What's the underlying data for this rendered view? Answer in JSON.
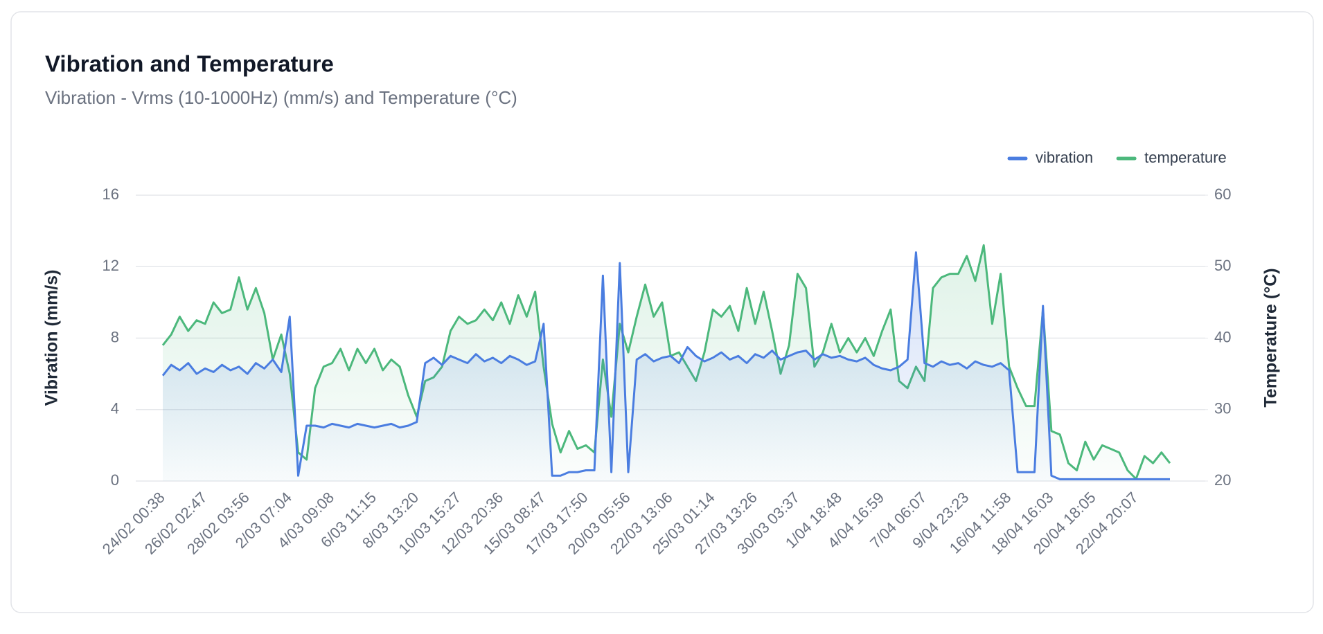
{
  "chart_data": {
    "type": "line",
    "title": "Vibration and Temperature",
    "subtitle": "Vibration - Vrms (10-1000Hz) (mm/s) and Temperature (°C)",
    "y_label": "Vibration (mm/s)",
    "y2_label": "Temperature (°C)",
    "categories": [
      "24/02 00:38",
      null,
      null,
      null,
      null,
      "26/02 02:47",
      null,
      null,
      null,
      null,
      "28/02 03:56",
      null,
      null,
      null,
      null,
      "2/03 07:04",
      null,
      null,
      null,
      null,
      "4/03 09:08",
      null,
      null,
      null,
      null,
      "6/03 11:15",
      null,
      null,
      null,
      null,
      "8/03 13:20",
      null,
      null,
      null,
      null,
      "10/03 15:27",
      null,
      null,
      null,
      null,
      "12/03 20:36",
      null,
      null,
      null,
      null,
      "15/03 08:47",
      null,
      null,
      null,
      null,
      "17/03 17:50",
      null,
      null,
      null,
      null,
      "20/03 05:56",
      null,
      null,
      null,
      null,
      "22/03 13:06",
      null,
      null,
      null,
      null,
      "25/03 01:14",
      null,
      null,
      null,
      null,
      "27/03 13:26",
      null,
      null,
      null,
      null,
      "30/03 03:37",
      null,
      null,
      null,
      null,
      "1/04 18:48",
      null,
      null,
      null,
      null,
      "4/04 16:59",
      null,
      null,
      null,
      null,
      "7/04 06:07",
      null,
      null,
      null,
      null,
      "9/04 23:23",
      null,
      null,
      null,
      null,
      "16/04 11:58",
      null,
      null,
      null,
      null,
      "18/04 16:03",
      null,
      null,
      null,
      null,
      "20/04 18:05",
      null,
      null,
      null,
      null,
      "22/04 20:07",
      null,
      null,
      null,
      null
    ],
    "series": [
      {
        "name": "vibration",
        "color": "#4a7de0",
        "values": [
          5.9,
          6.5,
          6.2,
          6.6,
          6.0,
          6.3,
          6.1,
          6.5,
          6.2,
          6.4,
          6.0,
          6.6,
          6.3,
          6.8,
          6.1,
          9.2,
          0.3,
          3.1,
          3.1,
          3.0,
          3.2,
          3.1,
          3.0,
          3.2,
          3.1,
          3.0,
          3.1,
          3.2,
          3.0,
          3.1,
          3.3,
          6.6,
          6.9,
          6.5,
          7.0,
          6.8,
          6.6,
          7.1,
          6.7,
          6.9,
          6.6,
          7.0,
          6.8,
          6.5,
          6.7,
          8.8,
          0.3,
          0.3,
          0.5,
          0.5,
          0.6,
          0.6,
          11.5,
          0.5,
          12.2,
          0.5,
          6.8,
          7.1,
          6.7,
          6.9,
          7.0,
          6.6,
          7.5,
          7.0,
          6.7,
          6.9,
          7.2,
          6.8,
          7.0,
          6.6,
          7.1,
          6.9,
          7.3,
          6.8,
          7.0,
          7.2,
          7.3,
          6.8,
          7.1,
          6.9,
          7.0,
          6.8,
          6.7,
          6.9,
          6.5,
          6.3,
          6.2,
          6.4,
          6.8,
          12.8,
          6.6,
          6.4,
          6.7,
          6.5,
          6.6,
          6.3,
          6.7,
          6.5,
          6.4,
          6.6,
          6.2,
          0.5,
          0.5,
          0.5,
          9.8,
          0.3,
          0.1,
          0.1,
          0.1,
          0.1,
          0.1,
          0.1,
          0.1,
          0.1,
          0.1,
          0.1,
          0.1,
          0.1,
          0.1,
          0.1
        ]
      },
      {
        "name": "temperature",
        "color": "#4cb87c",
        "axis": "y2",
        "values": [
          39,
          40.5,
          43,
          41,
          42.5,
          42,
          45,
          43.5,
          44,
          48.5,
          44,
          47,
          43.5,
          37,
          40.5,
          35,
          24,
          23,
          33,
          36,
          36.5,
          38.5,
          35.5,
          38.5,
          36.5,
          38.5,
          35.5,
          37,
          36,
          32,
          29,
          34,
          34.5,
          36,
          41,
          43,
          42,
          42.5,
          44,
          42.5,
          45,
          42,
          46,
          43,
          46.5,
          36,
          28,
          24,
          27,
          24.5,
          25,
          24,
          37,
          29,
          42,
          38,
          43,
          47.5,
          43,
          45,
          37.5,
          38,
          36,
          34,
          38,
          44,
          43,
          44.5,
          41,
          47,
          42,
          46.5,
          41,
          35,
          39,
          49,
          47,
          36,
          38,
          42,
          38,
          40,
          38,
          40,
          37.5,
          41,
          44,
          34,
          33,
          36,
          34,
          47,
          48.5,
          49,
          49,
          51.5,
          48,
          53,
          42,
          49,
          36,
          33,
          30.5,
          30.5,
          44,
          27,
          26.5,
          22.5,
          21.5,
          25.5,
          23,
          25,
          24.5,
          24,
          21.5,
          20.3,
          23.5,
          22.5,
          24,
          22.5
        ]
      }
    ],
    "ylim": [
      0,
      16
    ],
    "yticks": [
      0,
      4,
      8,
      12,
      16
    ],
    "y2lim": [
      20,
      60
    ],
    "y2ticks": [
      20,
      30,
      40,
      50,
      60
    ],
    "grid": true,
    "legend": "top-right",
    "area": true
  }
}
